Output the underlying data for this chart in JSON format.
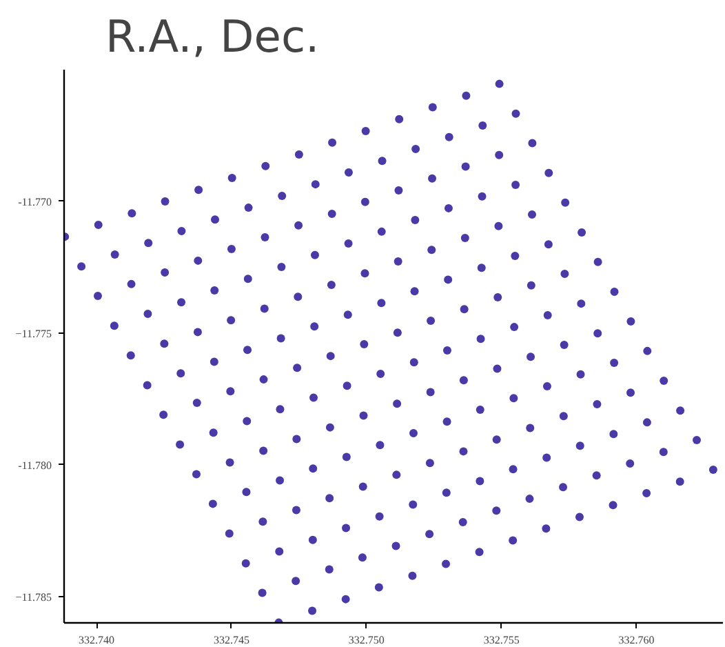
{
  "chart_data": {
    "type": "scatter",
    "title": "R.A., Dec.",
    "marker": "circle",
    "grid": false,
    "xlim": [
      332.7388,
      332.7632
    ],
    "ylim": [
      -11.786,
      -11.765
    ],
    "xticks": [
      {
        "value": 332.74,
        "label": "332.740"
      },
      332.745,
      {
        "value": 332.75,
        "label": "332.750"
      },
      332.755,
      {
        "value": 332.76,
        "label": "332.760"
      }
    ],
    "yticks": [
      {
        "value": -11.77,
        "label": "-11.770"
      },
      -11.775,
      {
        "value": -11.78,
        "label": "-11.780"
      },
      -11.785
    ],
    "series": [
      {
        "color": "#4a3aa8",
        "x": [
          332.73883,
          332.74007,
          332.74131,
          332.74254,
          332.74378,
          332.74502,
          332.74626,
          332.7475,
          332.74873,
          332.74997,
          332.75121,
          332.75245,
          332.75369,
          332.75492,
          332.73944,
          332.74068,
          332.74192,
          332.74315,
          332.74439,
          332.74563,
          332.74687,
          332.74811,
          332.74934,
          332.75058,
          332.75182,
          332.75306,
          332.7543,
          332.75553,
          332.74005,
          332.74129,
          332.74253,
          332.74376,
          332.745,
          332.74624,
          332.74748,
          332.74872,
          332.74995,
          332.75119,
          332.75243,
          332.75367,
          332.75491,
          332.75614,
          332.74066,
          332.7419,
          332.74314,
          332.74437,
          332.74561,
          332.74685,
          332.74809,
          332.74933,
          332.75056,
          332.7518,
          332.75304,
          332.75428,
          332.75552,
          332.75675,
          332.74127,
          332.74251,
          332.74375,
          332.74498,
          332.74622,
          332.74746,
          332.7487,
          332.74994,
          332.75117,
          332.75241,
          332.75365,
          332.75489,
          332.75613,
          332.75736,
          332.74188,
          332.74312,
          332.74436,
          332.74559,
          332.74683,
          332.74807,
          332.74931,
          332.75055,
          332.75178,
          332.75302,
          332.75426,
          332.7555,
          332.75674,
          332.75797,
          332.74248,
          332.74372,
          332.74496,
          332.74619,
          332.74743,
          332.74867,
          332.74991,
          332.75115,
          332.75238,
          332.75362,
          332.75486,
          332.7561,
          332.75734,
          332.75857,
          332.74309,
          332.74433,
          332.74557,
          332.7468,
          332.74804,
          332.74928,
          332.75052,
          332.75176,
          332.75299,
          332.75423,
          332.75547,
          332.75671,
          332.75795,
          332.75918,
          332.7437,
          332.74494,
          332.74618,
          332.74741,
          332.74865,
          332.74989,
          332.75113,
          332.75237,
          332.7536,
          332.75484,
          332.75608,
          332.75732,
          332.75856,
          332.75979,
          332.74431,
          332.74555,
          332.74679,
          332.74802,
          332.74926,
          332.7505,
          332.75174,
          332.75298,
          332.75421,
          332.75545,
          332.75669,
          332.75793,
          332.75917,
          332.7604,
          332.74492,
          332.74616,
          332.7474,
          332.74863,
          332.74987,
          332.75111,
          332.75235,
          332.75359,
          332.75482,
          332.75606,
          332.7573,
          332.75854,
          332.75978,
          332.76101,
          332.74553,
          332.74677,
          332.74801,
          332.74924,
          332.75048,
          332.75172,
          332.75296,
          332.7542,
          332.75543,
          332.75667,
          332.75791,
          332.75915,
          332.76039,
          332.76162,
          332.74614,
          332.74738,
          332.74862,
          332.74985,
          332.75109,
          332.75233,
          332.75357,
          332.75481,
          332.75604,
          332.75728,
          332.75852,
          332.75976,
          332.761,
          332.76223,
          332.74675,
          332.74799,
          332.74923,
          332.75046,
          332.7517,
          332.75294,
          332.75418,
          332.75542,
          332.75665,
          332.75789,
          332.75913,
          332.76037,
          332.76161,
          332.76284
        ],
        "values": [
          -11.77134,
          -11.77089,
          -11.77045,
          -11.77,
          -11.76956,
          -11.76911,
          -11.76866,
          -11.76822,
          -11.76777,
          -11.76733,
          -11.76688,
          -11.76643,
          -11.76599,
          -11.76554,
          -11.77247,
          -11.77202,
          -11.77158,
          -11.77113,
          -11.77069,
          -11.77024,
          -11.76979,
          -11.76935,
          -11.7689,
          -11.76846,
          -11.76801,
          -11.76756,
          -11.76712,
          -11.76667,
          -11.77359,
          -11.77314,
          -11.7727,
          -11.77225,
          -11.77181,
          -11.77136,
          -11.77091,
          -11.77047,
          -11.77002,
          -11.76958,
          -11.76913,
          -11.76868,
          -11.76824,
          -11.76779,
          -11.77472,
          -11.77427,
          -11.77383,
          -11.77338,
          -11.77294,
          -11.77249,
          -11.77204,
          -11.7716,
          -11.77115,
          -11.77071,
          -11.77026,
          -11.76981,
          -11.76937,
          -11.76892,
          -11.77585,
          -11.7754,
          -11.77496,
          -11.77451,
          -11.77407,
          -11.77362,
          -11.77317,
          -11.77273,
          -11.77228,
          -11.77184,
          -11.77139,
          -11.77094,
          -11.7705,
          -11.77005,
          -11.77698,
          -11.77653,
          -11.77609,
          -11.77564,
          -11.7752,
          -11.77475,
          -11.7743,
          -11.77386,
          -11.77341,
          -11.77297,
          -11.77252,
          -11.77207,
          -11.77163,
          -11.77118,
          -11.7781,
          -11.77765,
          -11.77721,
          -11.77676,
          -11.77632,
          -11.77587,
          -11.77542,
          -11.77498,
          -11.77453,
          -11.77409,
          -11.77364,
          -11.77319,
          -11.77275,
          -11.7723,
          -11.77923,
          -11.77878,
          -11.77834,
          -11.77789,
          -11.77745,
          -11.777,
          -11.77655,
          -11.77611,
          -11.77566,
          -11.77522,
          -11.77477,
          -11.77432,
          -11.77388,
          -11.77343,
          -11.78036,
          -11.77991,
          -11.77947,
          -11.77902,
          -11.77858,
          -11.77813,
          -11.77768,
          -11.77724,
          -11.77679,
          -11.77635,
          -11.7759,
          -11.77545,
          -11.77501,
          -11.77456,
          -11.78148,
          -11.78103,
          -11.78059,
          -11.78014,
          -11.7797,
          -11.77925,
          -11.7788,
          -11.77836,
          -11.77791,
          -11.77747,
          -11.77702,
          -11.77657,
          -11.77613,
          -11.77568,
          -11.78261,
          -11.78216,
          -11.78172,
          -11.78127,
          -11.78083,
          -11.78038,
          -11.77993,
          -11.77949,
          -11.77904,
          -11.7786,
          -11.77815,
          -11.7777,
          -11.77726,
          -11.77681,
          -11.78374,
          -11.78329,
          -11.78285,
          -11.7824,
          -11.78196,
          -11.78151,
          -11.78106,
          -11.78062,
          -11.78017,
          -11.77973,
          -11.77928,
          -11.77883,
          -11.77839,
          -11.77794,
          -11.78486,
          -11.78441,
          -11.78397,
          -11.78352,
          -11.78308,
          -11.78263,
          -11.78218,
          -11.78174,
          -11.78129,
          -11.78085,
          -11.7804,
          -11.77995,
          -11.77951,
          -11.77906,
          -11.78599,
          -11.78554,
          -11.7851,
          -11.78465,
          -11.78421,
          -11.78376,
          -11.78331,
          -11.78287,
          -11.78242,
          -11.78198,
          -11.78153,
          -11.78108,
          -11.78064,
          -11.78019
        ]
      }
    ]
  }
}
